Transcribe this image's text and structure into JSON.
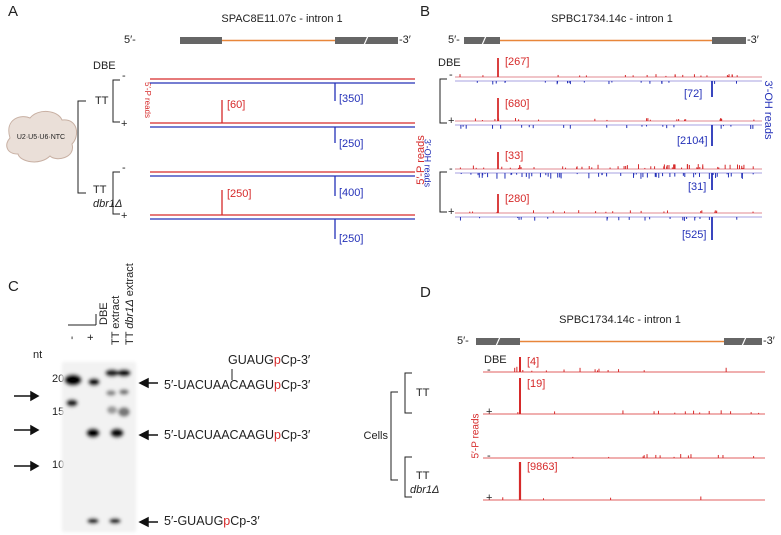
{
  "panel_a": {
    "label": "A",
    "title": "SPAC8E11.07c - intron 1",
    "five_prime": "5′-",
    "three_prime": "-3′",
    "dbe": "DBE",
    "complex": "U2·U5·U6·NTC",
    "left_axis": "5′-P reads",
    "right_axis": "3′-OH reads",
    "strain_wt": "TT",
    "strain_mut": "TT",
    "mutant": "dbr1Δ",
    "signs": [
      "-",
      "+",
      "-",
      "+"
    ],
    "peaks": [
      "[350]",
      "[60]",
      "[250]",
      "[400]",
      "[250]",
      "[250]"
    ]
  },
  "panel_b": {
    "label": "B",
    "title": "SPBC1734.14c - intron 1",
    "five_prime": "5′-",
    "three_prime": "-3′",
    "dbe": "DBE",
    "left_axis": "5′-P reads",
    "right_axis": "3′-OH reads",
    "signs": [
      "-",
      "+",
      "-",
      "+"
    ],
    "peaks": [
      "[267]",
      "[72]",
      "[680]",
      "[2104]",
      "[33]",
      "[31]",
      "[280]",
      "[525]"
    ]
  },
  "panel_c": {
    "label": "C",
    "unit": "nt",
    "markers": [
      "20",
      "15",
      "10"
    ],
    "lanes": {
      "minus": "-",
      "plus": "+",
      "dbe": "DBE",
      "tt_extract": "TT extract",
      "mut_prefix": "TT ",
      "mutant": "dbr1Δ",
      "mut_suffix": " extract"
    },
    "branch": [
      "GUAUG",
      "p",
      "Cp-3′"
    ],
    "lariat": [
      "5′-UACUAACAAGU",
      "p",
      "Cp-3′"
    ],
    "exon": [
      "5′-UACUAACAAGU",
      "p",
      "Cp-3′"
    ],
    "intron": [
      "5′-GUAUG",
      "p",
      "Cp-3′"
    ]
  },
  "panel_d": {
    "label": "D",
    "title": "SPBC1734.14c - intron 1",
    "five_prime": "5′-",
    "three_prime": "-3′",
    "dbe": "DBE",
    "axis": "5′-P reads",
    "cells": "Cells",
    "strain_wt": "TT",
    "strain_mut": "TT",
    "mutant": "dbr1Δ",
    "signs": [
      "-",
      "+",
      "-",
      "+"
    ],
    "peaks": [
      "[4]",
      "[19]",
      "[9863]"
    ]
  }
}
